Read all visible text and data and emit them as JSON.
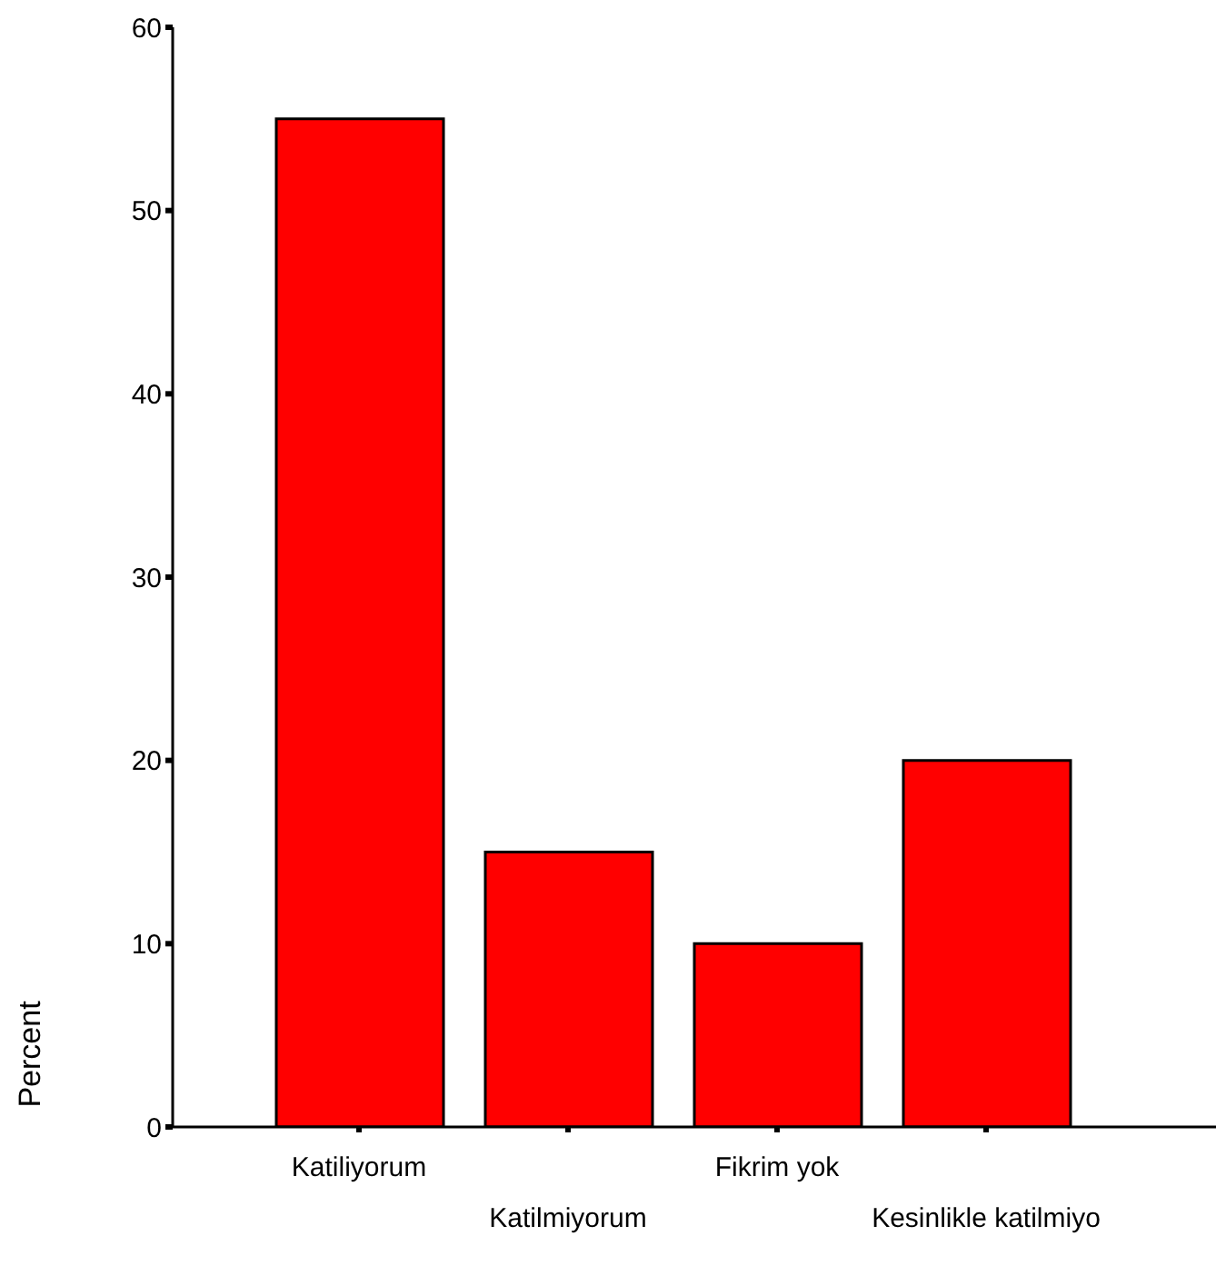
{
  "chart_data": {
    "type": "bar",
    "ylabel": "Percent",
    "categories": [
      "Katiliyorum",
      "Katilmiyorum",
      "Fikrim yok",
      "Kesinlikle katilmiyo"
    ],
    "values": [
      55,
      15,
      10,
      20
    ],
    "color": "#ff0000",
    "ylim": [
      0,
      60
    ],
    "yticks": [
      0,
      10,
      20,
      30,
      40,
      50,
      60
    ],
    "grid": false,
    "legend": false
  }
}
